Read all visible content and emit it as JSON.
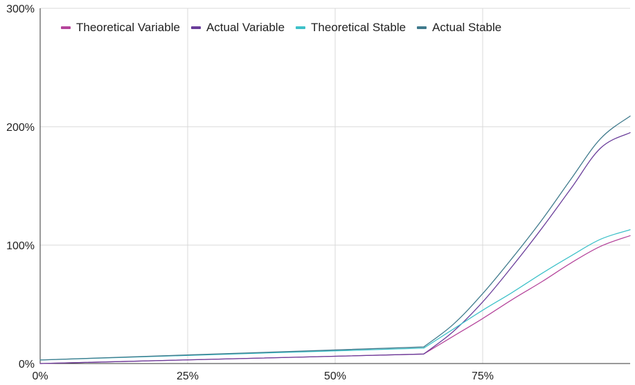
{
  "chart_data": {
    "type": "line",
    "title": "",
    "xlabel": "",
    "ylabel": "",
    "x_ticks": [
      "0%",
      "25%",
      "50%",
      "75%"
    ],
    "y_ticks": [
      "0%",
      "100%",
      "200%",
      "300%"
    ],
    "xlim": [
      0,
      1
    ],
    "ylim": [
      0,
      3
    ],
    "grid": true,
    "legend_position": "top-left",
    "series": [
      {
        "name": "Theoretical Variable",
        "color": "#b5459b",
        "x": [
          0,
          0.65,
          0.7,
          0.75,
          0.8,
          0.85,
          0.9,
          0.95,
          1.0
        ],
        "y": [
          0,
          0.08,
          0.23,
          0.38,
          0.54,
          0.69,
          0.85,
          0.99,
          1.08
        ]
      },
      {
        "name": "Actual Variable",
        "color": "#6a3d9a",
        "x": [
          0,
          0.65,
          0.7,
          0.75,
          0.8,
          0.85,
          0.9,
          0.95,
          1.0
        ],
        "y": [
          0,
          0.08,
          0.27,
          0.52,
          0.82,
          1.14,
          1.48,
          1.82,
          1.95
        ]
      },
      {
        "name": "Theoretical Stable",
        "color": "#3ec1c9",
        "x": [
          0,
          0.65,
          0.7,
          0.75,
          0.8,
          0.85,
          0.9,
          0.95,
          1.0
        ],
        "y": [
          0.03,
          0.13,
          0.29,
          0.45,
          0.6,
          0.76,
          0.91,
          1.05,
          1.13
        ]
      },
      {
        "name": "Actual Stable",
        "color": "#3f7a8c",
        "x": [
          0,
          0.65,
          0.7,
          0.75,
          0.8,
          0.85,
          0.9,
          0.95,
          1.0
        ],
        "y": [
          0.03,
          0.14,
          0.33,
          0.59,
          0.89,
          1.21,
          1.56,
          1.9,
          2.09
        ]
      }
    ]
  }
}
